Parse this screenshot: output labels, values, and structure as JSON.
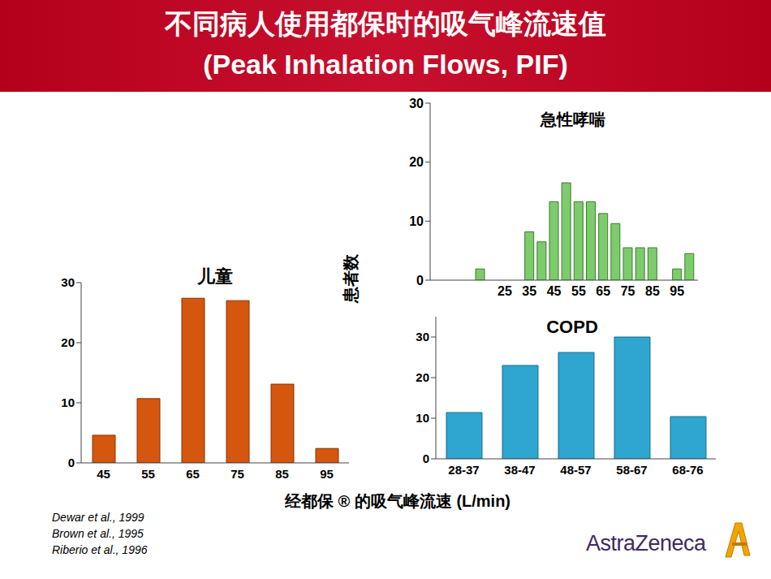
{
  "header": {
    "title": "不同病人使用都保时的吸气峰流速值",
    "subtitle": "(Peak Inhalation Flows, PIF)"
  },
  "y_label": "患者数",
  "x_label": "经都保 ® 的吸气峰流速 (L/min)",
  "references": [
    "Dewar et al., 1999",
    "Brown et al., 1995",
    "Riberio et al., 1996"
  ],
  "logo": "AstraZeneca",
  "chart_data": [
    {
      "type": "bar",
      "title": "儿童",
      "categories": [
        "45",
        "55",
        "65",
        "75",
        "85",
        "95"
      ],
      "values": [
        4.6,
        10.7,
        27.4,
        27,
        13.1,
        2.4
      ],
      "color": "#d4560f",
      "ylim": [
        0,
        30
      ],
      "yticks": [
        0,
        10,
        20,
        30
      ]
    },
    {
      "type": "bar",
      "title": "急性哮喘",
      "categories": [
        null,
        null,
        "25",
        null,
        "35",
        null,
        "45",
        null,
        "55",
        null,
        "65",
        null,
        "75",
        null,
        "85",
        null,
        "95",
        null
      ],
      "values": [
        1.9,
        null,
        null,
        null,
        8.2,
        6.5,
        13.3,
        16.5,
        13.3,
        13.3,
        11.3,
        9.6,
        5.5,
        5.5,
        5.5,
        null,
        1.9,
        4.5
      ],
      "color": "#7dcc6c",
      "ylim": [
        0,
        30
      ],
      "yticks": [
        0,
        10,
        20,
        30
      ]
    },
    {
      "type": "bar",
      "title": "COPD",
      "categories": [
        "28-37",
        "38-47",
        "48-57",
        "58-67",
        "68-76"
      ],
      "values": [
        11.4,
        23,
        26.2,
        30,
        10.4
      ],
      "color": "#2ea6cf",
      "ylim": [
        0,
        35
      ],
      "yticks": [
        0,
        10,
        20,
        30
      ]
    }
  ]
}
